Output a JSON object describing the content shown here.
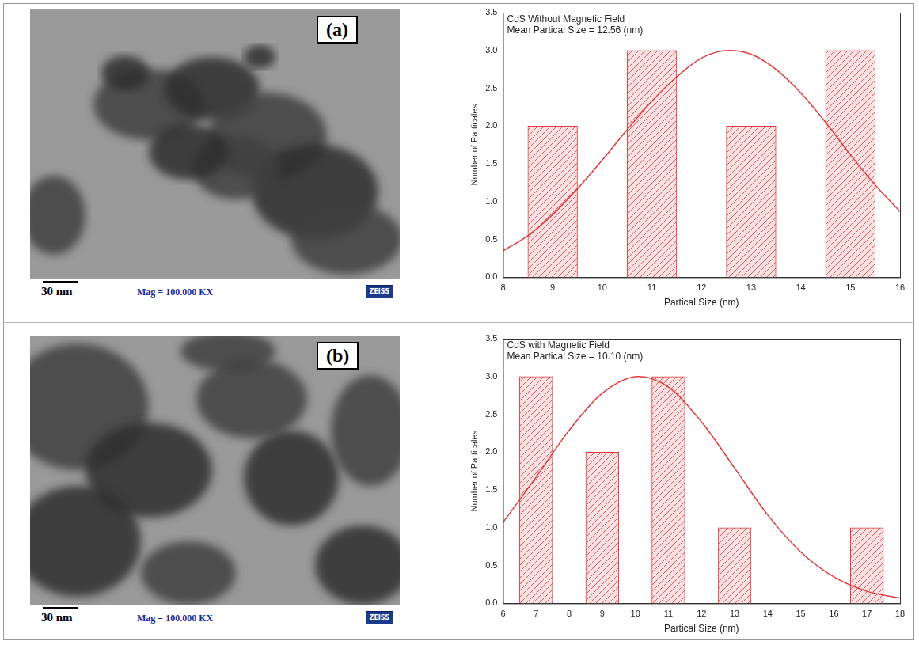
{
  "images": [
    {
      "label": "(a)",
      "scale_bar": "30 nm",
      "magnification": "Mag = 100.000 KX",
      "logo": "ZEISS"
    },
    {
      "label": "(b)",
      "scale_bar": "30 nm",
      "magnification": "Mag = 100.000 KX",
      "logo": "ZEISS"
    }
  ],
  "chart_data": [
    {
      "type": "histogram",
      "annotations": [
        "CdS Without Magnetic Field",
        "Mean Partical Size = 12.56 (nm)"
      ],
      "x_label": "Partical Size (nm)",
      "y_label": "Number of Particales",
      "bins": [
        8,
        10,
        12,
        14,
        16
      ],
      "values": [
        2,
        3,
        2,
        3
      ],
      "color": "#e03a3e",
      "fit_curve": {
        "type": "line",
        "color": "#e03a3e",
        "x": [
          8,
          8.5,
          9,
          9.5,
          10,
          10.5,
          11,
          11.5,
          12,
          12.56,
          13,
          13.5,
          14,
          14.5,
          15,
          15.5,
          16
        ],
        "values": [
          0.35,
          0.55,
          0.83,
          1.17,
          1.55,
          1.95,
          2.33,
          2.65,
          2.9,
          3.0,
          2.95,
          2.75,
          2.44,
          2.05,
          1.62,
          1.22,
          0.87
        ]
      },
      "xlim": [
        8,
        16
      ],
      "xticks": [
        8,
        9,
        10,
        11,
        12,
        13,
        14,
        15,
        16
      ],
      "ylim": [
        0,
        3.5
      ],
      "yticks": [
        {
          "value": 0,
          "label": "0.0"
        },
        0.5,
        {
          "value": 1,
          "label": "1.0"
        },
        1.5,
        {
          "value": 2,
          "label": "2.0"
        },
        2.5,
        {
          "value": 3,
          "label": "3.0"
        },
        3.5
      ],
      "grid": false
    },
    {
      "type": "histogram",
      "annotations": [
        "CdS with Magnetic Field",
        "Mean Partical Size = 10.10 (nm)"
      ],
      "x_label": "Partical Size (nm)",
      "y_label": "Number of Particales",
      "bins": [
        6,
        8,
        10,
        12,
        14,
        16,
        18
      ],
      "values": [
        3,
        2,
        3,
        1,
        0,
        1
      ],
      "color": "#e03a3e",
      "fit_curve": {
        "type": "line",
        "color": "#e03a3e",
        "x": [
          6,
          7,
          8,
          9,
          10.1,
          11,
          12,
          13,
          14,
          15,
          16,
          17,
          18
        ],
        "values": [
          1.07,
          1.67,
          2.29,
          2.78,
          3.0,
          2.86,
          2.4,
          1.79,
          1.17,
          0.68,
          0.35,
          0.16,
          0.07
        ]
      },
      "xlim": [
        6,
        18
      ],
      "xticks": [
        6,
        7,
        8,
        9,
        10,
        11,
        12,
        13,
        14,
        15,
        16,
        17,
        18
      ],
      "ylim": [
        0,
        3.5
      ],
      "yticks": [
        {
          "value": 0,
          "label": "0.0"
        },
        0.5,
        {
          "value": 1,
          "label": "1.0"
        },
        1.5,
        {
          "value": 2,
          "label": "2.0"
        },
        2.5,
        {
          "value": 3,
          "label": "3.0"
        },
        3.5
      ],
      "grid": false
    }
  ]
}
